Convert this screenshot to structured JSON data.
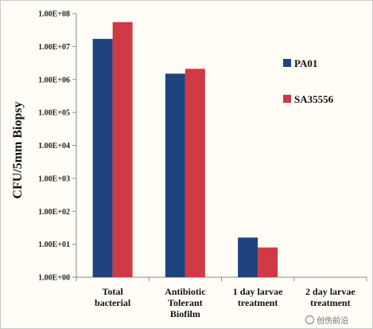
{
  "chart_data": {
    "type": "bar",
    "scale": "log",
    "ylabel": "CFU/5mm Biopsy",
    "y_ticks": [
      "1.00E+00",
      "1.00E+01",
      "1.00E+02",
      "1.00E+03",
      "1.00E+04",
      "1.00E+05",
      "1.00E+06",
      "1.00E+07",
      "1.00E+08"
    ],
    "ylim": [
      1,
      100000000
    ],
    "grid": false,
    "legend_position": "right",
    "categories": [
      [
        "Total",
        "bacterial"
      ],
      [
        "Antibiotic",
        "Tolerant",
        "Biofilm"
      ],
      [
        "1 day larvae",
        "treatment"
      ],
      [
        "2 day larvae",
        "treatment"
      ]
    ],
    "series": [
      {
        "name": "PA01",
        "color": "#1f437f",
        "values": [
          17000000,
          1500000,
          16,
          null
        ]
      },
      {
        "name": "SA35556",
        "color": "#cf3a44",
        "values": [
          55000000,
          2100000,
          8,
          null
        ]
      }
    ]
  },
  "watermark": {
    "text": "创伤前沿",
    "icon": "wechat-logo-icon"
  }
}
